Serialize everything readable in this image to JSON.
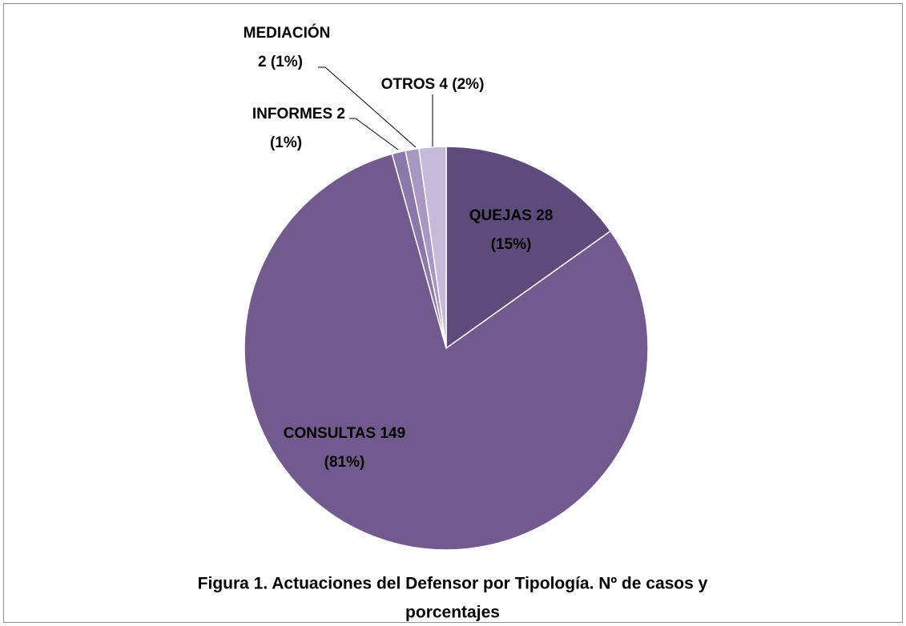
{
  "chart_data": {
    "type": "pie",
    "title": [
      "Figura 1. Actuaciones del Defensor por Tipología. Nº de casos y",
      "porcentajes"
    ],
    "values": [
      28,
      149,
      2,
      2,
      4
    ],
    "value_labels": [
      [
        "QUEJAS 28",
        "(15%)"
      ],
      [
        "CONSULTAS 149",
        "(81%)"
      ],
      [
        "INFORMES 2",
        "(1%)"
      ],
      [
        "MEDIACIÓN",
        "2 (1%)"
      ],
      [
        "OTROS 4 (2%)"
      ]
    ],
    "colors": [
      "#5f4a7c",
      "#725a8f",
      "#8b78aa",
      "#a897c3",
      "#c5bad9"
    ]
  }
}
